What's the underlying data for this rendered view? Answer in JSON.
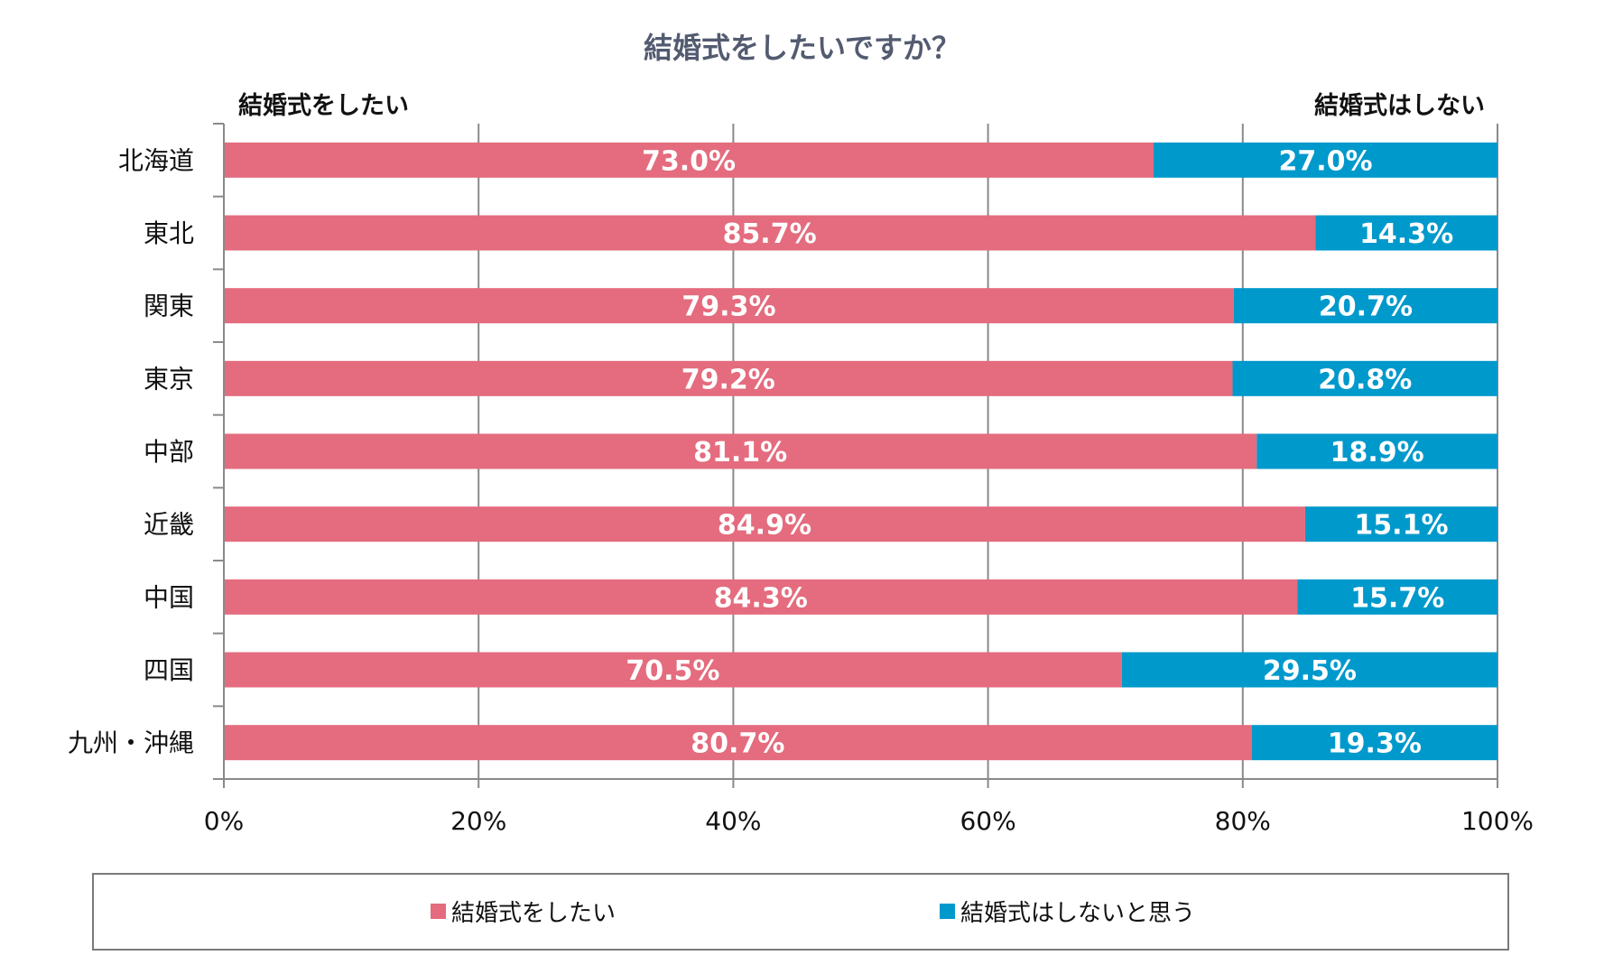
{
  "chart_data": {
    "type": "bar",
    "orientation": "horizontal",
    "stacked": true,
    "title": "結婚式をしたいですか？",
    "annotations": {
      "left_header": "結婚式をしたい",
      "right_header": "結婚式はしない"
    },
    "categories": [
      "北海道",
      "東北",
      "関東",
      "東京",
      "中部",
      "近畿",
      "中国",
      "四国",
      "九州・沖縄"
    ],
    "series": [
      {
        "name": "結婚式をしたい",
        "color": "#E46C7E",
        "values": [
          73.0,
          85.7,
          79.3,
          79.2,
          81.1,
          84.9,
          84.3,
          70.5,
          80.7
        ]
      },
      {
        "name": "結婚式はしないと思う",
        "color": "#0099CC",
        "values": [
          27.0,
          14.3,
          20.7,
          20.8,
          18.9,
          15.1,
          15.7,
          29.5,
          19.3
        ]
      }
    ],
    "data_labels": [
      [
        "73.0%",
        "85.7%",
        "79.3%",
        "79.2%",
        "81.1%",
        "84.9%",
        "84.3%",
        "70.5%",
        "80.7%"
      ],
      [
        "27.0%",
        "14.3%",
        "20.7%",
        "20.8%",
        "18.9%",
        "15.1%",
        "15.7%",
        "29.5%",
        "19.3%"
      ]
    ],
    "xlim": [
      0,
      100
    ],
    "x_ticks": [
      0,
      20,
      40,
      60,
      80,
      100
    ],
    "x_tick_labels": [
      "0%",
      "20%",
      "40%",
      "60%",
      "80%",
      "100%"
    ],
    "xlabel": "",
    "ylabel": "",
    "grid": "vertical",
    "legend_position": "bottom"
  }
}
